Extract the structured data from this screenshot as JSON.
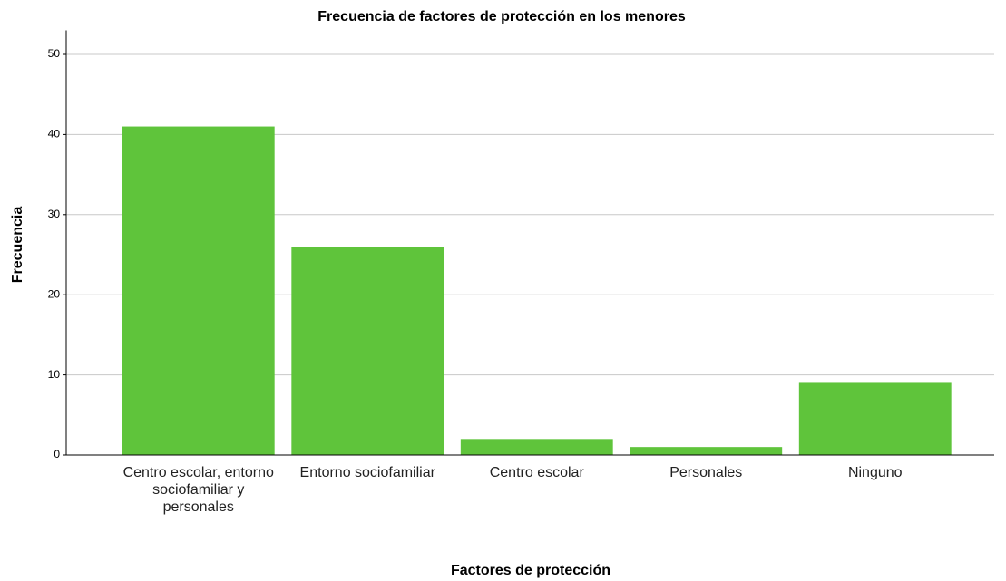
{
  "chart_data": {
    "type": "bar",
    "title": "Frecuencia de factores de protección en los menores",
    "xlabel": "Factores de protección",
    "ylabel": "Frecuencia",
    "categories": [
      "Centro escolar, entorno sociofamiliar y personales",
      "Entorno sociofamiliar",
      "Centro escolar",
      "Personales",
      "Ninguno"
    ],
    "values": [
      41,
      26,
      2,
      1,
      9
    ],
    "color": "#5fc43b",
    "ylim": [
      0,
      53
    ],
    "yticks": [
      0,
      10,
      20,
      30,
      40,
      50
    ],
    "grid": true
  }
}
